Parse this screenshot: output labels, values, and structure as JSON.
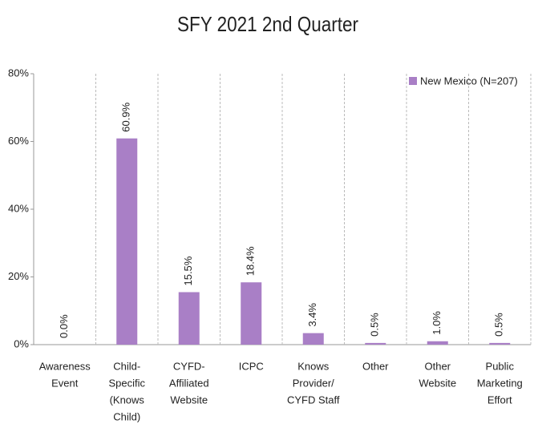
{
  "chart_data": {
    "type": "bar",
    "title": "SFY 2021 2nd Quarter",
    "categories": [
      [
        "Awareness",
        "Event"
      ],
      [
        "Child-",
        "Specific",
        "(Knows",
        "Child)"
      ],
      [
        "CYFD-",
        "Affiliated",
        "Website"
      ],
      [
        "ICPC"
      ],
      [
        "Knows",
        "Provider/",
        "CYFD Staff"
      ],
      [
        "Other"
      ],
      [
        "Other",
        "Website"
      ],
      [
        "Public",
        "Marketing",
        "Effort"
      ]
    ],
    "series": [
      {
        "name": "New Mexico (N=207)",
        "color": "#a97fc6",
        "values": [
          0.0,
          60.9,
          15.5,
          18.4,
          3.4,
          0.5,
          1.0,
          0.5
        ],
        "value_labels": [
          "0.0%",
          "60.9%",
          "15.5%",
          "18.4%",
          "3.4%",
          "0.5%",
          "1.0%",
          "0.5%"
        ]
      }
    ],
    "ylim": [
      0,
      80
    ],
    "yticks": [
      {
        "value": 0,
        "label": "0%"
      },
      {
        "value": 20,
        "label": "20%"
      },
      {
        "value": 40,
        "label": "40%"
      },
      {
        "value": 60,
        "label": "60%"
      },
      {
        "value": 80,
        "label": "80%"
      }
    ],
    "legend": "top-right"
  }
}
